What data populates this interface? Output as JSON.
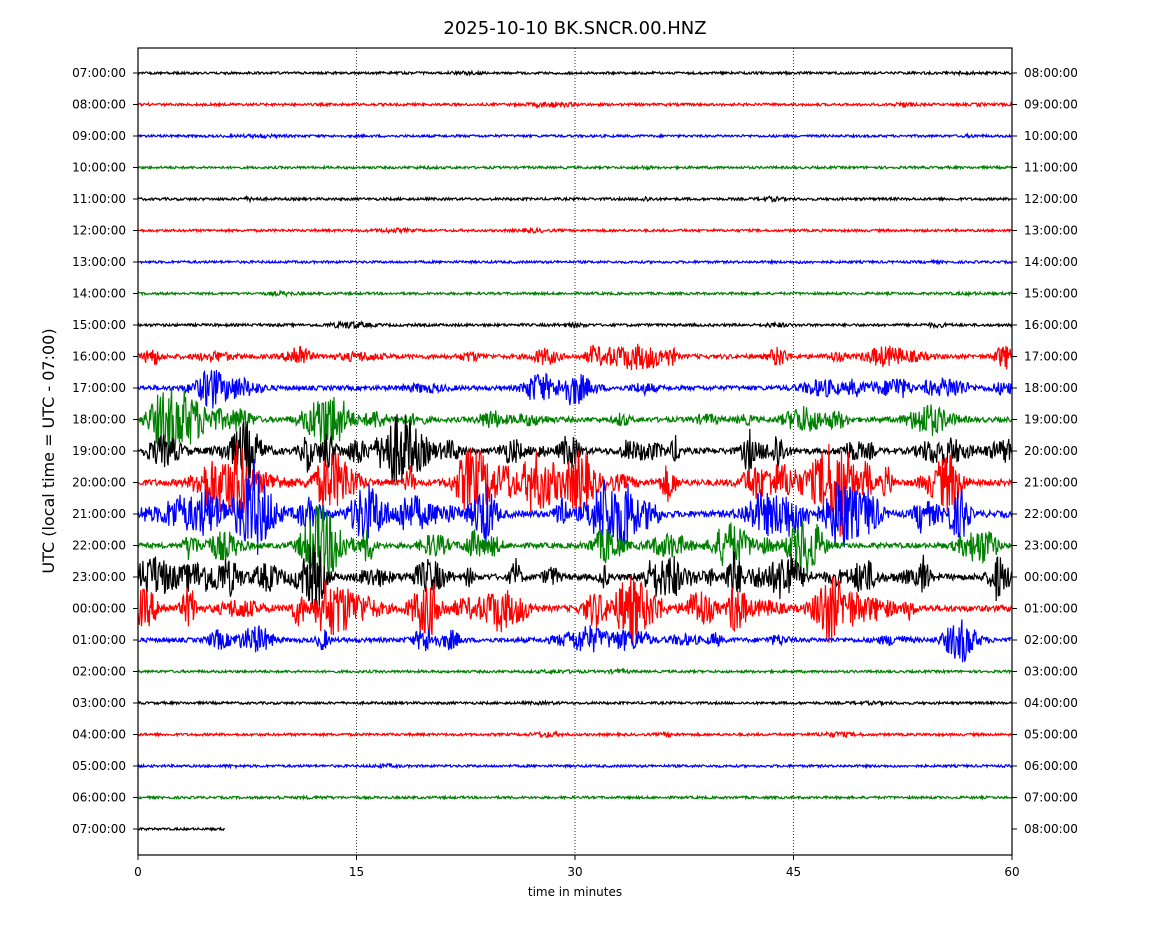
{
  "chart_data": {
    "type": "line",
    "title": "2025-10-10 BK.SNCR.00.HNZ",
    "xlabel": "time in minutes",
    "ylabel": "UTC (local time = UTC - 07:00)",
    "xlim": [
      0,
      60
    ],
    "x_ticks": [
      "0",
      "15",
      "30",
      "45",
      "60"
    ],
    "x_tick_values": [
      0,
      15,
      30,
      45,
      60
    ],
    "grid": "vertical dotted at 15, 30, 45",
    "trace_colors": [
      "#000000",
      "#ff0000",
      "#0000ff",
      "#008000"
    ],
    "rows": [
      {
        "left": "07:00:00",
        "right": "08:00:00",
        "activity": 0.05,
        "end_minute": 60
      },
      {
        "left": "08:00:00",
        "right": "09:00:00",
        "activity": 0.08,
        "end_minute": 60
      },
      {
        "left": "09:00:00",
        "right": "10:00:00",
        "activity": 0.05,
        "end_minute": 60
      },
      {
        "left": "10:00:00",
        "right": "11:00:00",
        "activity": 0.05,
        "end_minute": 60
      },
      {
        "left": "11:00:00",
        "right": "12:00:00",
        "activity": 0.08,
        "end_minute": 60
      },
      {
        "left": "12:00:00",
        "right": "13:00:00",
        "activity": 0.06,
        "end_minute": 60
      },
      {
        "left": "13:00:00",
        "right": "14:00:00",
        "activity": 0.05,
        "end_minute": 60
      },
      {
        "left": "14:00:00",
        "right": "15:00:00",
        "activity": 0.05,
        "end_minute": 60
      },
      {
        "left": "15:00:00",
        "right": "16:00:00",
        "activity": 0.1,
        "end_minute": 60
      },
      {
        "left": "16:00:00",
        "right": "17:00:00",
        "activity": 0.45,
        "end_minute": 60
      },
      {
        "left": "17:00:00",
        "right": "18:00:00",
        "activity": 0.45,
        "end_minute": 60
      },
      {
        "left": "18:00:00",
        "right": "19:00:00",
        "activity": 0.55,
        "end_minute": 60
      },
      {
        "left": "19:00:00",
        "right": "20:00:00",
        "activity": 0.7,
        "end_minute": 60
      },
      {
        "left": "20:00:00",
        "right": "21:00:00",
        "activity": 0.85,
        "end_minute": 60
      },
      {
        "left": "21:00:00",
        "right": "22:00:00",
        "activity": 0.85,
        "end_minute": 60
      },
      {
        "left": "22:00:00",
        "right": "23:00:00",
        "activity": 0.6,
        "end_minute": 60
      },
      {
        "left": "23:00:00",
        "right": "00:00:00",
        "activity": 0.75,
        "end_minute": 60
      },
      {
        "left": "00:00:00",
        "right": "01:00:00",
        "activity": 0.75,
        "end_minute": 60
      },
      {
        "left": "01:00:00",
        "right": "02:00:00",
        "activity": 0.45,
        "end_minute": 60
      },
      {
        "left": "02:00:00",
        "right": "03:00:00",
        "activity": 0.06,
        "end_minute": 60
      },
      {
        "left": "03:00:00",
        "right": "04:00:00",
        "activity": 0.06,
        "end_minute": 60
      },
      {
        "left": "04:00:00",
        "right": "05:00:00",
        "activity": 0.08,
        "end_minute": 60
      },
      {
        "left": "05:00:00",
        "right": "06:00:00",
        "activity": 0.05,
        "end_minute": 60
      },
      {
        "left": "06:00:00",
        "right": "07:00:00",
        "activity": 0.05,
        "end_minute": 60
      },
      {
        "left": "07:00:00",
        "right": "08:00:00",
        "activity": 0.02,
        "end_minute": 6
      }
    ]
  }
}
